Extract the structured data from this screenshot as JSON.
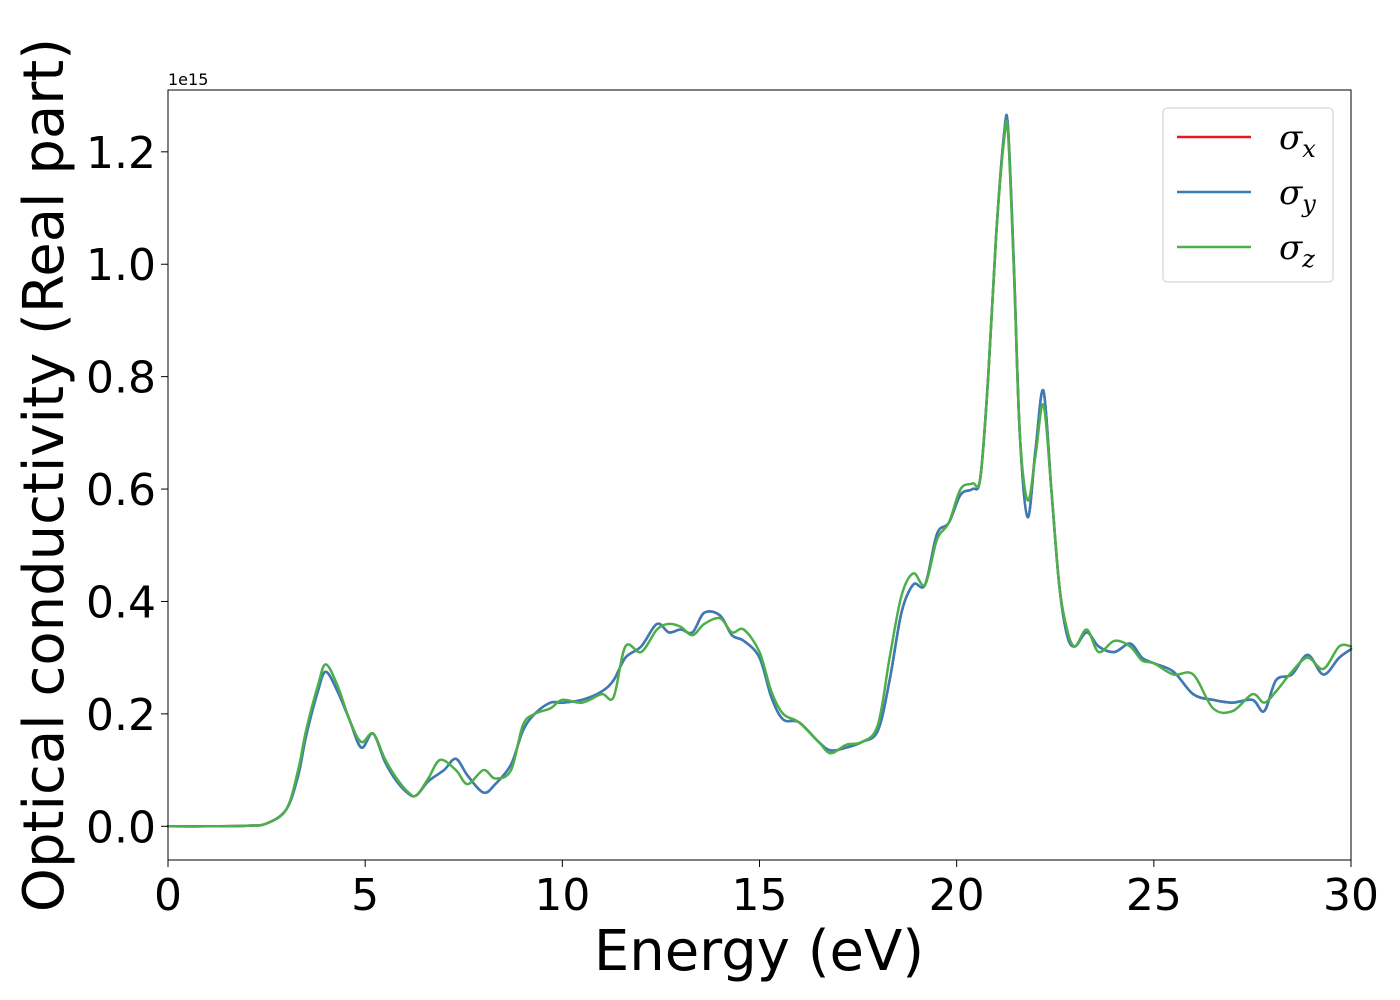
{
  "chart_data": {
    "type": "line",
    "xlabel": "Energy (eV)",
    "ylabel": "Optical conductivity (Real part)",
    "y_offset_label": "1e15",
    "xlim": [
      0,
      30
    ],
    "ylim": [
      -0.06,
      1.31
    ],
    "xticks": [
      0,
      5,
      10,
      15,
      20,
      25,
      30
    ],
    "xtick_labels": [
      "0",
      "5",
      "10",
      "15",
      "20",
      "25",
      "30"
    ],
    "yticks": [
      0.0,
      0.2,
      0.4,
      0.6,
      0.8,
      1.0,
      1.2
    ],
    "ytick_labels": [
      "0.0",
      "0.2",
      "0.4",
      "0.6",
      "0.8",
      "1.0",
      "1.2"
    ],
    "grid": false,
    "legend_position": "top-right",
    "series": [
      {
        "name": "σ",
        "subscript": "x",
        "color": "#e41a1c",
        "x": [
          0,
          1,
          2,
          2.5,
          3,
          3.3,
          3.5,
          3.8,
          4.0,
          4.3,
          4.6,
          4.9,
          5.2,
          5.5,
          5.8,
          6.1,
          6.3,
          6.6,
          7.0,
          7.3,
          7.6,
          8.0,
          8.3,
          8.7,
          9.0,
          9.3,
          9.7,
          10.0,
          10.5,
          11.0,
          11.3,
          11.6,
          12.0,
          12.4,
          12.7,
          13.0,
          13.3,
          13.6,
          14.0,
          14.3,
          14.6,
          15.0,
          15.3,
          15.6,
          16.0,
          16.5,
          16.8,
          17.2,
          17.6,
          18.0,
          18.3,
          18.6,
          18.9,
          19.2,
          19.5,
          19.8,
          20.1,
          20.4,
          20.6,
          20.8,
          21.0,
          21.2,
          21.3,
          21.45,
          21.6,
          21.8,
          22.0,
          22.2,
          22.4,
          22.6,
          22.8,
          23.0,
          23.3,
          23.6,
          24.0,
          24.4,
          24.7,
          25.0,
          25.5,
          26.0,
          26.5,
          27.0,
          27.5,
          27.8,
          28.1,
          28.5,
          28.9,
          29.3,
          29.7,
          30.0
        ],
        "y": [
          0.0,
          0.0,
          0.001,
          0.005,
          0.03,
          0.09,
          0.16,
          0.24,
          0.275,
          0.24,
          0.19,
          0.14,
          0.165,
          0.115,
          0.08,
          0.058,
          0.055,
          0.08,
          0.1,
          0.12,
          0.09,
          0.06,
          0.075,
          0.11,
          0.17,
          0.2,
          0.22,
          0.22,
          0.225,
          0.24,
          0.26,
          0.3,
          0.32,
          0.36,
          0.345,
          0.35,
          0.345,
          0.38,
          0.375,
          0.34,
          0.33,
          0.3,
          0.23,
          0.19,
          0.185,
          0.15,
          0.135,
          0.14,
          0.15,
          0.17,
          0.26,
          0.38,
          0.43,
          0.43,
          0.52,
          0.54,
          0.59,
          0.6,
          0.62,
          0.8,
          1.05,
          1.23,
          1.245,
          1.0,
          0.7,
          0.55,
          0.67,
          0.775,
          0.6,
          0.43,
          0.34,
          0.32,
          0.345,
          0.32,
          0.31,
          0.325,
          0.3,
          0.29,
          0.275,
          0.235,
          0.225,
          0.22,
          0.225,
          0.205,
          0.26,
          0.27,
          0.305,
          0.27,
          0.3,
          0.315
        ]
      },
      {
        "name": "σ",
        "subscript": "y",
        "color": "#377eb8",
        "x": [
          0,
          1,
          2,
          2.5,
          3,
          3.3,
          3.5,
          3.8,
          4.0,
          4.3,
          4.6,
          4.9,
          5.2,
          5.5,
          5.8,
          6.1,
          6.3,
          6.6,
          7.0,
          7.3,
          7.6,
          8.0,
          8.3,
          8.7,
          9.0,
          9.3,
          9.7,
          10.0,
          10.5,
          11.0,
          11.3,
          11.6,
          12.0,
          12.4,
          12.7,
          13.0,
          13.3,
          13.6,
          14.0,
          14.3,
          14.6,
          15.0,
          15.3,
          15.6,
          16.0,
          16.5,
          16.8,
          17.2,
          17.6,
          18.0,
          18.3,
          18.6,
          18.9,
          19.2,
          19.5,
          19.8,
          20.1,
          20.4,
          20.6,
          20.8,
          21.0,
          21.2,
          21.3,
          21.45,
          21.6,
          21.8,
          22.0,
          22.2,
          22.4,
          22.6,
          22.8,
          23.0,
          23.3,
          23.6,
          24.0,
          24.4,
          24.7,
          25.0,
          25.5,
          26.0,
          26.5,
          27.0,
          27.5,
          27.8,
          28.1,
          28.5,
          28.9,
          29.3,
          29.7,
          30.0
        ],
        "y": [
          0.0,
          0.0,
          0.001,
          0.005,
          0.03,
          0.09,
          0.16,
          0.24,
          0.275,
          0.24,
          0.19,
          0.14,
          0.165,
          0.115,
          0.08,
          0.058,
          0.055,
          0.08,
          0.1,
          0.12,
          0.09,
          0.06,
          0.075,
          0.11,
          0.17,
          0.2,
          0.22,
          0.22,
          0.225,
          0.24,
          0.26,
          0.3,
          0.32,
          0.36,
          0.345,
          0.35,
          0.345,
          0.38,
          0.375,
          0.34,
          0.33,
          0.3,
          0.23,
          0.19,
          0.185,
          0.15,
          0.135,
          0.14,
          0.15,
          0.17,
          0.26,
          0.38,
          0.43,
          0.43,
          0.52,
          0.54,
          0.59,
          0.6,
          0.62,
          0.8,
          1.05,
          1.23,
          1.245,
          1.0,
          0.7,
          0.55,
          0.67,
          0.775,
          0.6,
          0.43,
          0.34,
          0.32,
          0.345,
          0.32,
          0.31,
          0.325,
          0.3,
          0.29,
          0.275,
          0.235,
          0.225,
          0.22,
          0.225,
          0.205,
          0.26,
          0.27,
          0.305,
          0.27,
          0.3,
          0.315
        ]
      },
      {
        "name": "σ",
        "subscript": "z",
        "color": "#4daf4a",
        "x": [
          0,
          1,
          2,
          2.5,
          3,
          3.3,
          3.5,
          3.8,
          4.0,
          4.3,
          4.6,
          4.9,
          5.2,
          5.5,
          5.8,
          6.1,
          6.3,
          6.6,
          6.9,
          7.3,
          7.6,
          8.0,
          8.3,
          8.7,
          9.0,
          9.3,
          9.7,
          10.0,
          10.5,
          11.0,
          11.3,
          11.6,
          12.0,
          12.4,
          12.7,
          13.0,
          13.3,
          13.6,
          14.0,
          14.3,
          14.6,
          15.0,
          15.3,
          15.6,
          16.0,
          16.5,
          16.8,
          17.2,
          17.6,
          18.0,
          18.3,
          18.6,
          18.9,
          19.2,
          19.5,
          19.8,
          20.1,
          20.4,
          20.6,
          20.8,
          21.0,
          21.2,
          21.3,
          21.45,
          21.6,
          21.8,
          22.0,
          22.2,
          22.4,
          22.6,
          22.8,
          23.0,
          23.3,
          23.6,
          24.0,
          24.4,
          24.7,
          25.0,
          25.5,
          26.0,
          26.5,
          27.0,
          27.5,
          27.8,
          28.1,
          28.5,
          28.9,
          29.3,
          29.7,
          30.0
        ],
        "y": [
          0.0,
          0.0,
          0.001,
          0.005,
          0.03,
          0.1,
          0.17,
          0.25,
          0.288,
          0.25,
          0.19,
          0.15,
          0.165,
          0.12,
          0.085,
          0.06,
          0.055,
          0.085,
          0.118,
          0.1,
          0.075,
          0.1,
          0.085,
          0.1,
          0.18,
          0.2,
          0.21,
          0.225,
          0.22,
          0.235,
          0.23,
          0.32,
          0.31,
          0.35,
          0.36,
          0.355,
          0.34,
          0.36,
          0.37,
          0.345,
          0.35,
          0.31,
          0.24,
          0.2,
          0.185,
          0.15,
          0.13,
          0.145,
          0.15,
          0.18,
          0.3,
          0.41,
          0.45,
          0.43,
          0.51,
          0.54,
          0.6,
          0.61,
          0.62,
          0.8,
          1.05,
          1.22,
          1.235,
          0.99,
          0.7,
          0.58,
          0.66,
          0.75,
          0.6,
          0.43,
          0.35,
          0.32,
          0.35,
          0.31,
          0.33,
          0.32,
          0.295,
          0.29,
          0.27,
          0.27,
          0.21,
          0.205,
          0.235,
          0.22,
          0.24,
          0.275,
          0.3,
          0.28,
          0.32,
          0.32
        ]
      }
    ]
  }
}
